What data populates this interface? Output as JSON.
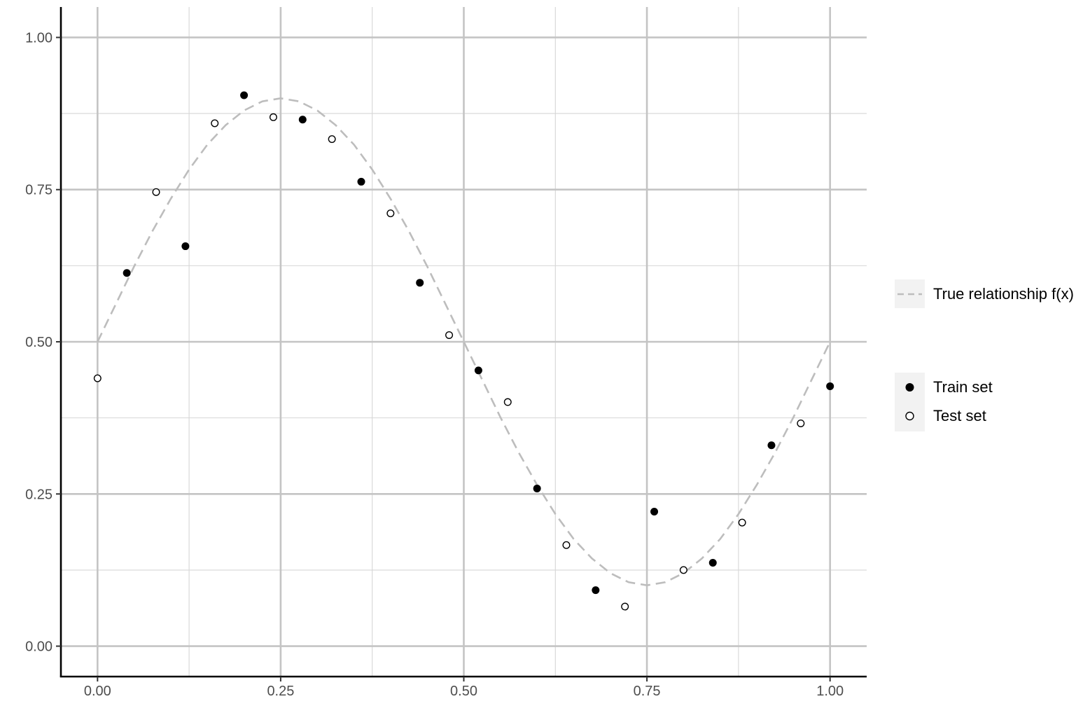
{
  "chart_data": {
    "type": "scatter",
    "title": "",
    "xlabel": "",
    "ylabel": "",
    "xlim": [
      -0.05,
      1.05
    ],
    "ylim": [
      -0.05,
      1.05
    ],
    "x_ticks": [
      0,
      0.25,
      0.5,
      0.75,
      1
    ],
    "x_tick_labels": [
      "0.00",
      "0.25",
      "0.50",
      "0.75",
      "1.00"
    ],
    "y_ticks": [
      0,
      0.25,
      0.5,
      0.75,
      1
    ],
    "y_tick_labels": [
      "0.00",
      "0.25",
      "0.50",
      "0.75",
      "1.00"
    ],
    "grid": true,
    "legend_position": "right",
    "line": {
      "name": "True relationship f(x)",
      "style": "dashed",
      "color": "#bdbdbd",
      "x": [
        0,
        0.025,
        0.05,
        0.075,
        0.1,
        0.125,
        0.15,
        0.175,
        0.2,
        0.225,
        0.25,
        0.275,
        0.3,
        0.325,
        0.35,
        0.375,
        0.4,
        0.425,
        0.45,
        0.475,
        0.5,
        0.525,
        0.55,
        0.575,
        0.6,
        0.625,
        0.65,
        0.675,
        0.7,
        0.725,
        0.75,
        0.775,
        0.8,
        0.825,
        0.85,
        0.875,
        0.9,
        0.925,
        0.95,
        0.975,
        1
      ],
      "y": [
        0.5,
        0.562,
        0.624,
        0.682,
        0.735,
        0.783,
        0.824,
        0.856,
        0.88,
        0.895,
        0.9,
        0.895,
        0.88,
        0.856,
        0.824,
        0.783,
        0.735,
        0.682,
        0.624,
        0.562,
        0.5,
        0.438,
        0.376,
        0.318,
        0.265,
        0.217,
        0.176,
        0.144,
        0.12,
        0.105,
        0.1,
        0.105,
        0.12,
        0.144,
        0.176,
        0.217,
        0.265,
        0.318,
        0.376,
        0.438,
        0.5
      ]
    },
    "series": [
      {
        "name": "Train set",
        "marker": "filled-circle",
        "color": "#000000",
        "x": [
          0.04,
          0.12,
          0.2,
          0.28,
          0.36,
          0.44,
          0.52,
          0.6,
          0.68,
          0.76,
          0.84,
          0.92,
          1.0
        ],
        "y": [
          0.613,
          0.657,
          0.905,
          0.865,
          0.763,
          0.597,
          0.453,
          0.259,
          0.092,
          0.221,
          0.137,
          0.33,
          0.427
        ]
      },
      {
        "name": "Test set",
        "marker": "open-circle",
        "color": "#000000",
        "x": [
          0.0,
          0.08,
          0.16,
          0.24,
          0.32,
          0.4,
          0.48,
          0.56,
          0.64,
          0.72,
          0.8,
          0.88,
          0.96
        ],
        "y": [
          0.44,
          0.746,
          0.859,
          0.869,
          0.833,
          0.711,
          0.511,
          0.401,
          0.166,
          0.065,
          0.125,
          0.203,
          0.366
        ]
      }
    ]
  }
}
